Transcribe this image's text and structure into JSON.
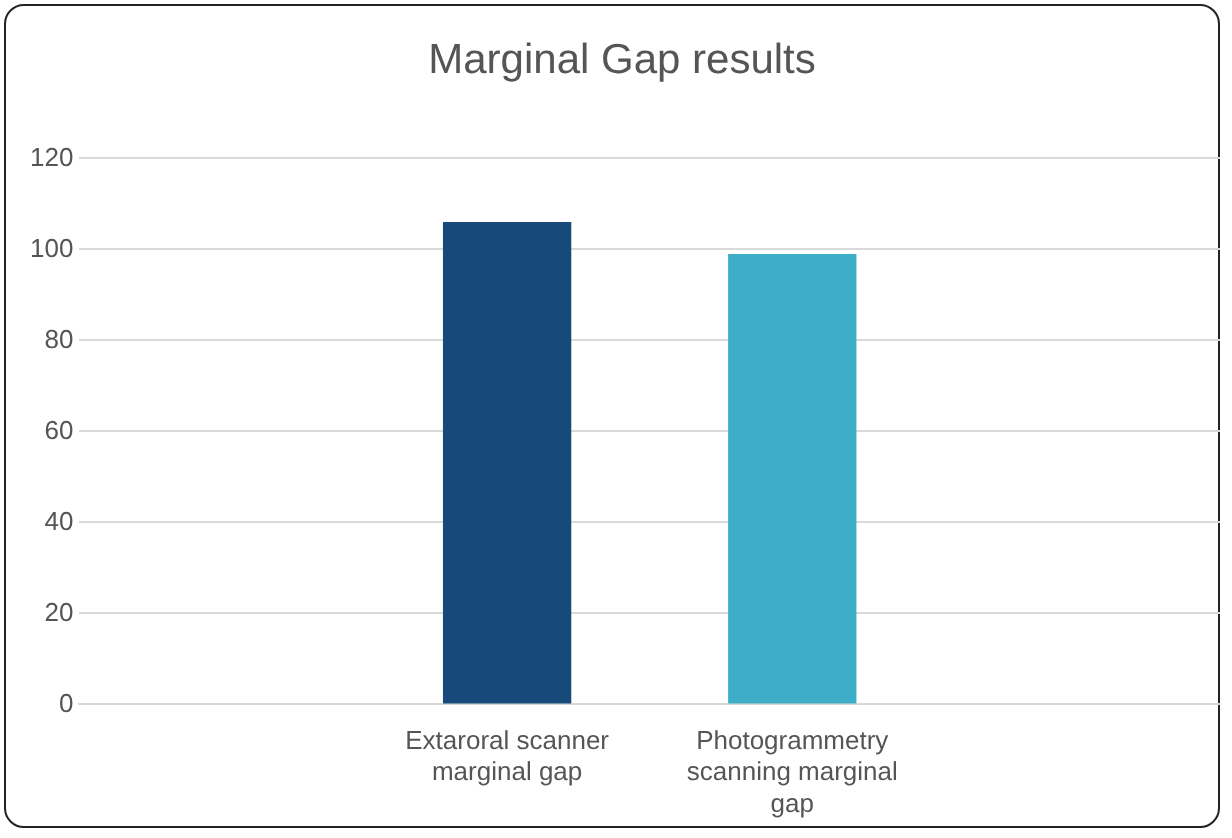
{
  "chart_data": {
    "type": "bar",
    "title": "Marginal Gap results",
    "categories": [
      null,
      "Extaroral scanner marginal gap",
      "Photogrammetry scanning marginal gap",
      null
    ],
    "values": [
      null,
      106,
      99,
      null
    ],
    "colors": [
      "#17497b",
      "#17497b",
      "#3eaec8",
      "#3eaec8"
    ],
    "ylim": [
      0,
      120
    ],
    "yticks": [
      0,
      20,
      40,
      60,
      80,
      100,
      120
    ],
    "grid": "y"
  }
}
